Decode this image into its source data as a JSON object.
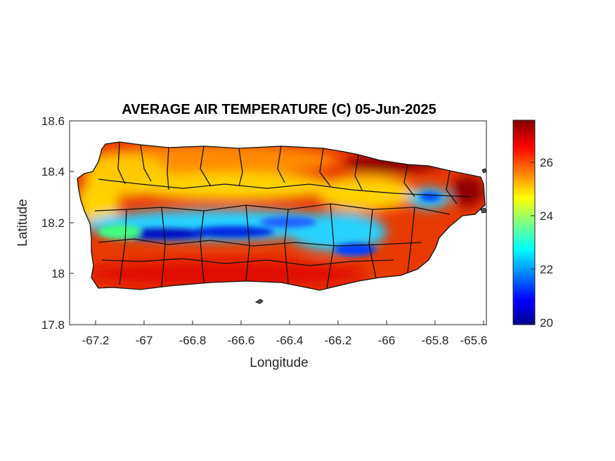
{
  "map": {
    "title": "AVERAGE AIR TEMPERATURE (C) 05-Jun-2025",
    "xlabel": "Longitude",
    "ylabel": "Latitude",
    "x_ticks": [
      "-67.2",
      "-67",
      "-66.8",
      "-66.6",
      "-66.4",
      "-66.2",
      "-66",
      "-65.8",
      "-65.6"
    ],
    "y_ticks": [
      "18.6",
      "18.4",
      "18.2",
      "18",
      "17.8"
    ],
    "colorbar_ticks": [
      "26",
      "24",
      "22",
      "20"
    ],
    "colormap": "jet",
    "colors": {
      "warm": "#c81200",
      "hot": "#7f0000",
      "mid": "#ffd200",
      "cool": "#28d2ff",
      "cold": "#00008f",
      "boundary": "#111111"
    }
  },
  "chart_data": {
    "type": "heatmap",
    "title": "AVERAGE AIR TEMPERATURE (C) 05-Jun-2025",
    "xlabel": "Longitude",
    "ylabel": "Latitude",
    "xlim": [
      -67.3,
      -65.58
    ],
    "ylim": [
      17.8,
      18.6
    ],
    "x_ticks": [
      -67.2,
      -67,
      -66.8,
      -66.6,
      -66.4,
      -66.2,
      -66,
      -65.8,
      -65.6
    ],
    "y_ticks": [
      17.8,
      18,
      18.2,
      18.4,
      18.6
    ],
    "colorbar": {
      "range": [
        20,
        27.6
      ],
      "ticks": [
        20,
        22,
        24,
        26
      ],
      "colormap": "jet"
    },
    "regions": [
      {
        "name": "",
        "value": 27.5
      },
      {
        "name": "",
        "value": 26.5
      },
      {
        "name": "",
        "value": 26.0
      },
      {
        "name": "",
        "value": 25.0
      },
      {
        "name": "",
        "value": 22.5
      },
      {
        "name": "",
        "value": 20.5
      }
    ]
  }
}
